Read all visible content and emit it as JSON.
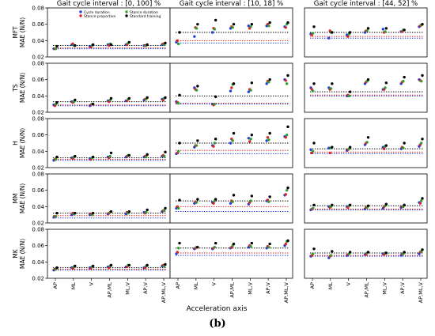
{
  "caption": "(b)",
  "chart_data": {
    "type": "scatter",
    "layout": "grid",
    "rows": [
      "MFT",
      "TS",
      "H",
      "MM",
      "MK"
    ],
    "columns": [
      "Gait cycle interval : [0, 100] %",
      "Gait cycle interval : [10, 18] %",
      "Gait cycle interval : [44, 52] %"
    ],
    "ylabel_suffix": "MAE (N/N)",
    "xlabel": "Acceleration axis",
    "categories": [
      "AP",
      "ML",
      "V",
      "AP,ML",
      "ML,V",
      "AP,V",
      "AP,ML,V"
    ],
    "ylim": [
      0.02,
      0.08
    ],
    "yticks": [
      "0.02",
      "0.04",
      "0.06",
      "0.08"
    ],
    "legend": [
      {
        "name": "Cycle duration",
        "color": "#1f3fe0"
      },
      {
        "name": "Stance proportion",
        "color": "#e02020"
      },
      {
        "name": "Stance duration",
        "color": "#2ca02c"
      },
      {
        "name": "Standard training",
        "color": "#000000"
      }
    ],
    "legend_placement": "top of first panel",
    "panels": [
      {
        "row": "MFT",
        "col": 0,
        "baselines": [
          0.034,
          0.031,
          0.03
        ],
        "values": [
          [
            0.03,
            0.03,
            0.03,
            0.033
          ],
          [
            0.035,
            0.036,
            0.034,
            0.034
          ],
          [
            0.033,
            0.032,
            0.034,
            0.035
          ],
          [
            0.035,
            0.034,
            0.036,
            0.035
          ],
          [
            0.035,
            0.035,
            0.037,
            0.038
          ],
          [
            0.034,
            0.034,
            0.034,
            0.035
          ],
          [
            0.035,
            0.036,
            0.035,
            0.037
          ]
        ]
      },
      {
        "row": "MFT",
        "col": 1,
        "baselines": [
          0.05,
          0.04,
          0.037
        ],
        "values": [
          [
            0.038,
            0.04,
            0.036,
            0.05
          ],
          [
            0.045,
            0.056,
            0.055,
            0.06
          ],
          [
            0.05,
            0.055,
            0.054,
            0.065
          ],
          [
            0.055,
            0.057,
            0.056,
            0.06
          ],
          [
            0.058,
            0.055,
            0.057,
            0.06
          ],
          [
            0.058,
            0.06,
            0.058,
            0.062
          ],
          [
            0.057,
            0.056,
            0.06,
            0.062
          ]
        ]
      },
      {
        "row": "MFT",
        "col": 2,
        "baselines": [
          0.05,
          0.045,
          0.043
        ],
        "values": [
          [
            0.048,
            0.047,
            0.049,
            0.057
          ],
          [
            0.043,
            0.052,
            0.05,
            0.05
          ],
          [
            0.047,
            0.045,
            0.048,
            0.05
          ],
          [
            0.05,
            0.052,
            0.052,
            0.055
          ],
          [
            0.054,
            0.05,
            0.051,
            0.055
          ],
          [
            0.051,
            0.051,
            0.053,
            0.053
          ],
          [
            0.057,
            0.058,
            0.059,
            0.06
          ]
        ]
      },
      {
        "row": "TS",
        "col": 0,
        "baselines": [
          0.033,
          0.029,
          0.028
        ],
        "values": [
          [
            0.029,
            0.028,
            0.03,
            0.032
          ],
          [
            0.033,
            0.032,
            0.033,
            0.035
          ],
          [
            0.028,
            0.029,
            0.03,
            0.03
          ],
          [
            0.034,
            0.033,
            0.035,
            0.037
          ],
          [
            0.034,
            0.034,
            0.036,
            0.037
          ],
          [
            0.035,
            0.036,
            0.036,
            0.038
          ],
          [
            0.036,
            0.035,
            0.037,
            0.038
          ]
        ]
      },
      {
        "row": "TS",
        "col": 1,
        "baselines": [
          0.04,
          0.031,
          0.03
        ],
        "values": [
          [
            0.033,
            0.032,
            0.031,
            0.041
          ],
          [
            0.05,
            0.048,
            0.047,
            0.052
          ],
          [
            0.03,
            0.029,
            0.03,
            0.039
          ],
          [
            0.046,
            0.05,
            0.054,
            0.055
          ],
          [
            0.045,
            0.048,
            0.047,
            0.056
          ],
          [
            0.055,
            0.058,
            0.057,
            0.06
          ],
          [
            0.06,
            0.059,
            0.055,
            0.065
          ]
        ]
      },
      {
        "row": "TS",
        "col": 2,
        "baselines": [
          0.045,
          0.041,
          0.04
        ],
        "values": [
          [
            0.05,
            0.048,
            0.046,
            0.055
          ],
          [
            0.05,
            0.048,
            0.049,
            0.055
          ],
          [
            0.04,
            0.041,
            0.04,
            0.045
          ],
          [
            0.055,
            0.057,
            0.058,
            0.06
          ],
          [
            0.048,
            0.048,
            0.05,
            0.056
          ],
          [
            0.055,
            0.057,
            0.058,
            0.063
          ],
          [
            0.06,
            0.059,
            0.058,
            0.065
          ]
        ]
      },
      {
        "row": "H",
        "col": 0,
        "baselines": [
          0.032,
          0.03,
          0.029
        ],
        "values": [
          [
            0.029,
            0.03,
            0.03,
            0.033
          ],
          [
            0.032,
            0.031,
            0.033,
            0.034
          ],
          [
            0.031,
            0.03,
            0.032,
            0.033
          ],
          [
            0.033,
            0.032,
            0.034,
            0.038
          ],
          [
            0.033,
            0.034,
            0.035,
            0.035
          ],
          [
            0.033,
            0.034,
            0.033,
            0.036
          ],
          [
            0.034,
            0.035,
            0.034,
            0.039
          ]
        ]
      },
      {
        "row": "H",
        "col": 1,
        "baselines": [
          0.05,
          0.041,
          0.037
        ],
        "values": [
          [
            0.037,
            0.038,
            0.04,
            0.05
          ],
          [
            0.045,
            0.047,
            0.047,
            0.053
          ],
          [
            0.047,
            0.046,
            0.05,
            0.055
          ],
          [
            0.05,
            0.055,
            0.053,
            0.062
          ],
          [
            0.056,
            0.052,
            0.055,
            0.06
          ],
          [
            0.053,
            0.057,
            0.054,
            0.062
          ],
          [
            0.058,
            0.057,
            0.06,
            0.07
          ]
        ]
      },
      {
        "row": "H",
        "col": 2,
        "baselines": [
          0.043,
          0.039,
          0.037
        ],
        "values": [
          [
            0.042,
            0.038,
            0.04,
            0.05
          ],
          [
            0.044,
            0.038,
            0.044,
            0.045
          ],
          [
            0.041,
            0.042,
            0.043,
            0.045
          ],
          [
            0.048,
            0.05,
            0.051,
            0.057
          ],
          [
            0.045,
            0.043,
            0.046,
            0.047
          ],
          [
            0.043,
            0.045,
            0.044,
            0.05
          ],
          [
            0.046,
            0.048,
            0.05,
            0.055
          ]
        ]
      },
      {
        "row": "MM",
        "col": 0,
        "baselines": [
          0.032,
          0.029,
          0.026
        ],
        "values": [
          [
            0.027,
            0.028,
            0.028,
            0.032
          ],
          [
            0.03,
            0.032,
            0.031,
            0.032
          ],
          [
            0.03,
            0.031,
            0.03,
            0.032
          ],
          [
            0.031,
            0.032,
            0.033,
            0.034
          ],
          [
            0.031,
            0.033,
            0.032,
            0.034
          ],
          [
            0.033,
            0.032,
            0.033,
            0.036
          ],
          [
            0.034,
            0.035,
            0.035,
            0.038
          ]
        ]
      },
      {
        "row": "MM",
        "col": 1,
        "baselines": [
          0.047,
          0.04,
          0.034
        ],
        "values": [
          [
            0.038,
            0.04,
            0.038,
            0.048
          ],
          [
            0.044,
            0.046,
            0.045,
            0.049
          ],
          [
            0.045,
            0.044,
            0.047,
            0.049
          ],
          [
            0.044,
            0.047,
            0.046,
            0.054
          ],
          [
            0.043,
            0.045,
            0.047,
            0.053
          ],
          [
            0.047,
            0.048,
            0.046,
            0.052
          ],
          [
            0.054,
            0.055,
            0.06,
            0.063
          ]
        ]
      },
      {
        "row": "MM",
        "col": 2,
        "baselines": [
          0.041,
          0.037,
          0.036
        ],
        "values": [
          [
            0.036,
            0.037,
            0.038,
            0.042
          ],
          [
            0.04,
            0.039,
            0.04,
            0.042
          ],
          [
            0.04,
            0.039,
            0.041,
            0.042
          ],
          [
            0.037,
            0.039,
            0.039,
            0.041
          ],
          [
            0.038,
            0.04,
            0.041,
            0.043
          ],
          [
            0.039,
            0.04,
            0.04,
            0.042
          ],
          [
            0.045,
            0.044,
            0.047,
            0.05
          ]
        ]
      },
      {
        "row": "MK",
        "col": 0,
        "baselines": [
          0.033,
          0.031,
          0.03
        ],
        "values": [
          [
            0.03,
            0.031,
            0.031,
            0.033
          ],
          [
            0.033,
            0.032,
            0.034,
            0.035
          ],
          [
            0.033,
            0.032,
            0.034,
            0.035
          ],
          [
            0.034,
            0.033,
            0.035,
            0.036
          ],
          [
            0.034,
            0.034,
            0.036,
            0.036
          ],
          [
            0.033,
            0.033,
            0.035,
            0.036
          ],
          [
            0.035,
            0.036,
            0.035,
            0.037
          ]
        ]
      },
      {
        "row": "MK",
        "col": 1,
        "baselines": [
          0.057,
          0.051,
          0.048
        ],
        "values": [
          [
            0.05,
            0.052,
            0.057,
            0.063
          ],
          [
            0.056,
            0.057,
            0.058,
            0.058
          ],
          [
            0.056,
            0.057,
            0.058,
            0.063
          ],
          [
            0.057,
            0.058,
            0.06,
            0.062
          ],
          [
            0.058,
            0.06,
            0.059,
            0.063
          ],
          [
            0.057,
            0.059,
            0.058,
            0.062
          ],
          [
            0.06,
            0.062,
            0.065,
            0.066
          ]
        ]
      },
      {
        "row": "MK",
        "col": 2,
        "baselines": [
          0.051,
          0.048,
          0.047
        ],
        "values": [
          [
            0.047,
            0.048,
            0.05,
            0.056
          ],
          [
            0.045,
            0.047,
            0.048,
            0.053
          ],
          [
            0.048,
            0.049,
            0.05,
            0.052
          ],
          [
            0.049,
            0.049,
            0.051,
            0.052
          ],
          [
            0.05,
            0.049,
            0.051,
            0.051
          ],
          [
            0.048,
            0.05,
            0.05,
            0.052
          ],
          [
            0.05,
            0.052,
            0.053,
            0.055
          ]
        ]
      }
    ]
  }
}
